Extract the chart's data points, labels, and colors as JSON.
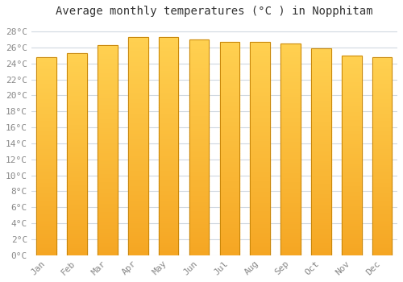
{
  "months": [
    "Jan",
    "Feb",
    "Mar",
    "Apr",
    "May",
    "Jun",
    "Jul",
    "Aug",
    "Sep",
    "Oct",
    "Nov",
    "Dec"
  ],
  "temperatures": [
    24.8,
    25.3,
    26.3,
    27.3,
    27.3,
    27.0,
    26.7,
    26.7,
    26.5,
    25.9,
    25.0,
    24.8
  ],
  "bar_color_bottom": "#F5A623",
  "bar_color_top": "#FFD050",
  "bar_edge_color": "#C8860A",
  "title": "Average monthly temperatures (°C ) in Nopphitam",
  "ylim": [
    0,
    29
  ],
  "ytick_step": 2,
  "background_color": "#ffffff",
  "grid_color": "#d0d8e0",
  "title_fontsize": 10,
  "tick_fontsize": 8,
  "bar_width": 0.65
}
